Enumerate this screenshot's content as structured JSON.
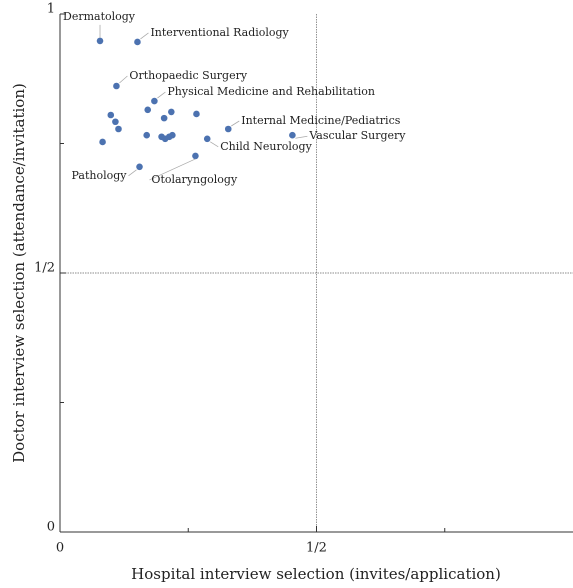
{
  "chart_data": {
    "type": "scatter",
    "x_label": "Hospital interview selection (invites/application)",
    "y_label": "Doctor interview selection (attendance/invitation)",
    "xlim": [
      0,
      1
    ],
    "ylim": [
      0,
      1
    ],
    "xticks": [
      0,
      {
        "value": 0.5,
        "label": "1/2"
      }
    ],
    "yticks": [
      0,
      {
        "value": 0.5,
        "label": "1/2"
      },
      1
    ],
    "minor_xticks": [
      0.25,
      0.75
    ],
    "minor_yticks": [
      0.25,
      0.75
    ],
    "reference_lines": {
      "x": 0.5,
      "y": 0.5
    },
    "color": "#4c72b0",
    "x": [
      0.078,
      0.151,
      0.11,
      0.184,
      0.171,
      0.217,
      0.266,
      0.099,
      0.203,
      0.108,
      0.114,
      0.328,
      0.169,
      0.198,
      0.205,
      0.213,
      0.219,
      0.287,
      0.453,
      0.083,
      0.264,
      0.155
    ],
    "y": [
      0.948,
      0.946,
      0.861,
      0.832,
      0.815,
      0.811,
      0.807,
      0.805,
      0.799,
      0.792,
      0.778,
      0.778,
      0.766,
      0.763,
      0.759,
      0.763,
      0.766,
      0.759,
      0.766,
      0.753,
      0.726,
      0.705
    ],
    "labels": [
      "Dermatology",
      "Interventional Radiology",
      "Orthopaedic Surgery",
      "Physical Medicine and Rehabilitation",
      null,
      null,
      null,
      null,
      null,
      null,
      null,
      "Internal Medicine/Pediatrics",
      null,
      null,
      null,
      null,
      null,
      "Child Neurology",
      "Vascular Surgery",
      null,
      "Otolaryngology",
      "Pathology"
    ]
  }
}
